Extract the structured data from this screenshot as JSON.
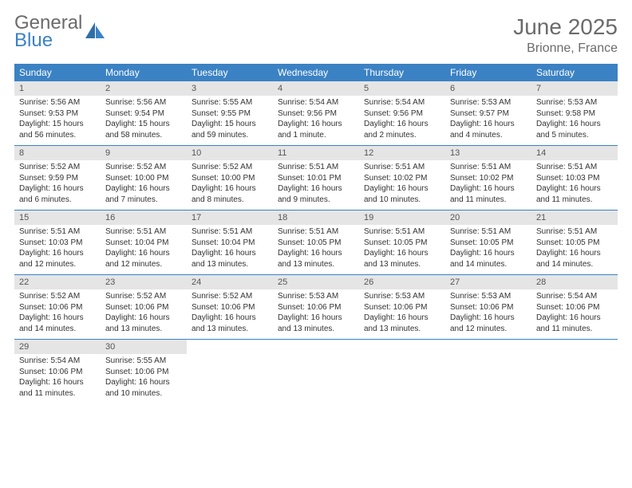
{
  "logo": {
    "line1": "General",
    "line2": "Blue"
  },
  "title": "June 2025",
  "location": "Brionne, France",
  "colors": {
    "header_bg": "#3b82c4",
    "header_text": "#ffffff",
    "daynum_bg": "#e5e5e5",
    "body_text": "#333333",
    "title_text": "#6b6b6b"
  },
  "typography": {
    "title_fontsize": 28,
    "location_fontsize": 16,
    "dayhead_fontsize": 12,
    "daynum_fontsize": 11,
    "body_fontsize": 10
  },
  "dayNames": [
    "Sunday",
    "Monday",
    "Tuesday",
    "Wednesday",
    "Thursday",
    "Friday",
    "Saturday"
  ],
  "weeks": [
    [
      {
        "n": "1",
        "sunrise": "Sunrise: 5:56 AM",
        "sunset": "Sunset: 9:53 PM",
        "day": "Daylight: 15 hours and 56 minutes."
      },
      {
        "n": "2",
        "sunrise": "Sunrise: 5:56 AM",
        "sunset": "Sunset: 9:54 PM",
        "day": "Daylight: 15 hours and 58 minutes."
      },
      {
        "n": "3",
        "sunrise": "Sunrise: 5:55 AM",
        "sunset": "Sunset: 9:55 PM",
        "day": "Daylight: 15 hours and 59 minutes."
      },
      {
        "n": "4",
        "sunrise": "Sunrise: 5:54 AM",
        "sunset": "Sunset: 9:56 PM",
        "day": "Daylight: 16 hours and 1 minute."
      },
      {
        "n": "5",
        "sunrise": "Sunrise: 5:54 AM",
        "sunset": "Sunset: 9:56 PM",
        "day": "Daylight: 16 hours and 2 minutes."
      },
      {
        "n": "6",
        "sunrise": "Sunrise: 5:53 AM",
        "sunset": "Sunset: 9:57 PM",
        "day": "Daylight: 16 hours and 4 minutes."
      },
      {
        "n": "7",
        "sunrise": "Sunrise: 5:53 AM",
        "sunset": "Sunset: 9:58 PM",
        "day": "Daylight: 16 hours and 5 minutes."
      }
    ],
    [
      {
        "n": "8",
        "sunrise": "Sunrise: 5:52 AM",
        "sunset": "Sunset: 9:59 PM",
        "day": "Daylight: 16 hours and 6 minutes."
      },
      {
        "n": "9",
        "sunrise": "Sunrise: 5:52 AM",
        "sunset": "Sunset: 10:00 PM",
        "day": "Daylight: 16 hours and 7 minutes."
      },
      {
        "n": "10",
        "sunrise": "Sunrise: 5:52 AM",
        "sunset": "Sunset: 10:00 PM",
        "day": "Daylight: 16 hours and 8 minutes."
      },
      {
        "n": "11",
        "sunrise": "Sunrise: 5:51 AM",
        "sunset": "Sunset: 10:01 PM",
        "day": "Daylight: 16 hours and 9 minutes."
      },
      {
        "n": "12",
        "sunrise": "Sunrise: 5:51 AM",
        "sunset": "Sunset: 10:02 PM",
        "day": "Daylight: 16 hours and 10 minutes."
      },
      {
        "n": "13",
        "sunrise": "Sunrise: 5:51 AM",
        "sunset": "Sunset: 10:02 PM",
        "day": "Daylight: 16 hours and 11 minutes."
      },
      {
        "n": "14",
        "sunrise": "Sunrise: 5:51 AM",
        "sunset": "Sunset: 10:03 PM",
        "day": "Daylight: 16 hours and 11 minutes."
      }
    ],
    [
      {
        "n": "15",
        "sunrise": "Sunrise: 5:51 AM",
        "sunset": "Sunset: 10:03 PM",
        "day": "Daylight: 16 hours and 12 minutes."
      },
      {
        "n": "16",
        "sunrise": "Sunrise: 5:51 AM",
        "sunset": "Sunset: 10:04 PM",
        "day": "Daylight: 16 hours and 12 minutes."
      },
      {
        "n": "17",
        "sunrise": "Sunrise: 5:51 AM",
        "sunset": "Sunset: 10:04 PM",
        "day": "Daylight: 16 hours and 13 minutes."
      },
      {
        "n": "18",
        "sunrise": "Sunrise: 5:51 AM",
        "sunset": "Sunset: 10:05 PM",
        "day": "Daylight: 16 hours and 13 minutes."
      },
      {
        "n": "19",
        "sunrise": "Sunrise: 5:51 AM",
        "sunset": "Sunset: 10:05 PM",
        "day": "Daylight: 16 hours and 13 minutes."
      },
      {
        "n": "20",
        "sunrise": "Sunrise: 5:51 AM",
        "sunset": "Sunset: 10:05 PM",
        "day": "Daylight: 16 hours and 14 minutes."
      },
      {
        "n": "21",
        "sunrise": "Sunrise: 5:51 AM",
        "sunset": "Sunset: 10:05 PM",
        "day": "Daylight: 16 hours and 14 minutes."
      }
    ],
    [
      {
        "n": "22",
        "sunrise": "Sunrise: 5:52 AM",
        "sunset": "Sunset: 10:06 PM",
        "day": "Daylight: 16 hours and 14 minutes."
      },
      {
        "n": "23",
        "sunrise": "Sunrise: 5:52 AM",
        "sunset": "Sunset: 10:06 PM",
        "day": "Daylight: 16 hours and 13 minutes."
      },
      {
        "n": "24",
        "sunrise": "Sunrise: 5:52 AM",
        "sunset": "Sunset: 10:06 PM",
        "day": "Daylight: 16 hours and 13 minutes."
      },
      {
        "n": "25",
        "sunrise": "Sunrise: 5:53 AM",
        "sunset": "Sunset: 10:06 PM",
        "day": "Daylight: 16 hours and 13 minutes."
      },
      {
        "n": "26",
        "sunrise": "Sunrise: 5:53 AM",
        "sunset": "Sunset: 10:06 PM",
        "day": "Daylight: 16 hours and 13 minutes."
      },
      {
        "n": "27",
        "sunrise": "Sunrise: 5:53 AM",
        "sunset": "Sunset: 10:06 PM",
        "day": "Daylight: 16 hours and 12 minutes."
      },
      {
        "n": "28",
        "sunrise": "Sunrise: 5:54 AM",
        "sunset": "Sunset: 10:06 PM",
        "day": "Daylight: 16 hours and 11 minutes."
      }
    ],
    [
      {
        "n": "29",
        "sunrise": "Sunrise: 5:54 AM",
        "sunset": "Sunset: 10:06 PM",
        "day": "Daylight: 16 hours and 11 minutes."
      },
      {
        "n": "30",
        "sunrise": "Sunrise: 5:55 AM",
        "sunset": "Sunset: 10:06 PM",
        "day": "Daylight: 16 hours and 10 minutes."
      },
      null,
      null,
      null,
      null,
      null
    ]
  ]
}
